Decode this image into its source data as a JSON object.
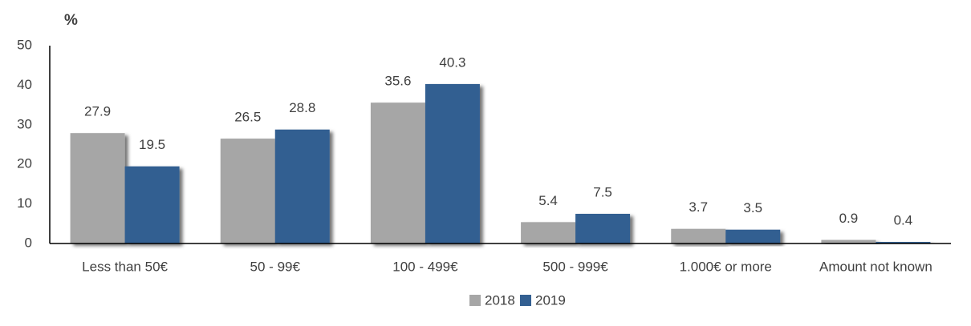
{
  "chart_data": {
    "type": "bar",
    "y_label": "%",
    "categories": [
      "Less than 50€",
      "50 - 99€",
      "100 - 499€",
      "500 - 999€",
      "1.000€ or more",
      "Amount not known"
    ],
    "series": [
      {
        "name": "2018",
        "color": "#a6a6a6",
        "values": [
          27.9,
          26.5,
          35.6,
          5.4,
          3.7,
          0.9
        ]
      },
      {
        "name": "2019",
        "color": "#335f91",
        "values": [
          19.5,
          28.8,
          40.3,
          7.5,
          3.5,
          0.4
        ]
      }
    ],
    "ylim": [
      0,
      50
    ],
    "yticks": [
      0,
      10,
      20,
      30,
      40,
      50
    ],
    "grid": false,
    "legend": "bottom"
  }
}
